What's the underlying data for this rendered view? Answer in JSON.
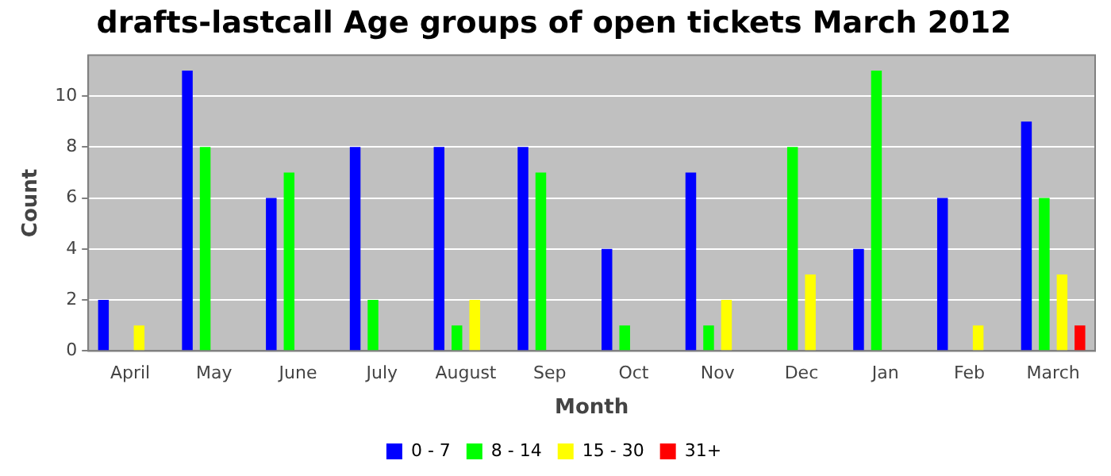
{
  "chart_data": {
    "type": "bar",
    "title": "drafts-lastcall Age groups of open tickets March 2012",
    "xlabel": "Month",
    "ylabel": "Count",
    "categories": [
      "April",
      "May",
      "June",
      "July",
      "August",
      "Sep",
      "Oct",
      "Nov",
      "Dec",
      "Jan",
      "Feb",
      "March"
    ],
    "series": [
      {
        "name": "0 - 7",
        "color": "#0000ff",
        "values": [
          2,
          11,
          6,
          8,
          8,
          8,
          4,
          7,
          0,
          4,
          6,
          9
        ]
      },
      {
        "name": "8 - 14",
        "color": "#00ff00",
        "values": [
          0,
          8,
          7,
          2,
          1,
          7,
          1,
          1,
          8,
          11,
          0,
          6
        ]
      },
      {
        "name": "15 - 30",
        "color": "#ffff00",
        "values": [
          1,
          0,
          0,
          0,
          2,
          0,
          0,
          2,
          3,
          0,
          1,
          3
        ]
      },
      {
        "name": "31+",
        "color": "#ff0000",
        "values": [
          0,
          0,
          0,
          0,
          0,
          0,
          0,
          0,
          0,
          0,
          0,
          1
        ]
      }
    ],
    "ylim": [
      0,
      11.6
    ],
    "yticks": [
      0,
      2,
      4,
      6,
      8,
      10
    ],
    "grid": "y",
    "legend": "bottom"
  }
}
